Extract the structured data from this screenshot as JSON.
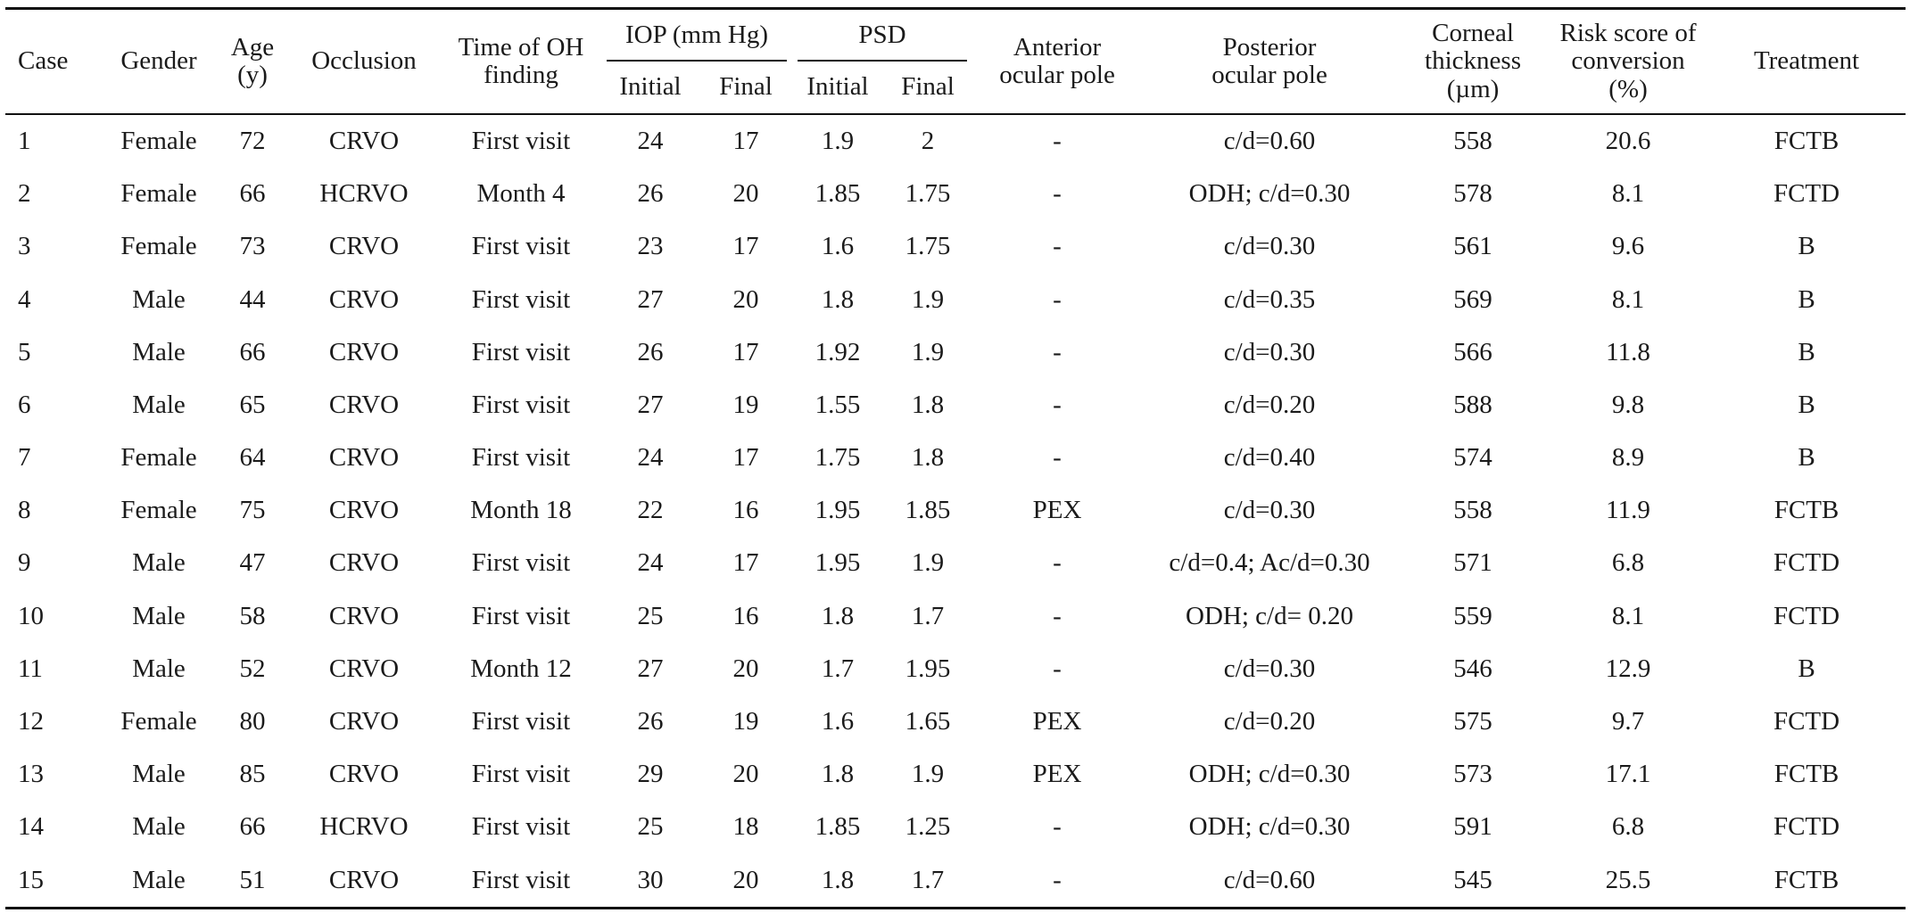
{
  "table": {
    "headers": {
      "case": "Case",
      "gender": "Gender",
      "age_line1": "Age",
      "age_line2": "(y)",
      "occlusion": "Occlusion",
      "time_line1": "Time of OH",
      "time_line2": "finding",
      "iop": "IOP (mm Hg)",
      "iop_initial": "Initial",
      "iop_final": "Final",
      "psd": "PSD",
      "psd_initial": "Initial",
      "psd_final": "Final",
      "anterior_line1": "Anterior",
      "anterior_line2": "ocular pole",
      "posterior_line1": "Posterior",
      "posterior_line2": "ocular pole",
      "corneal_line1": "Corneal",
      "corneal_line2": "thickness",
      "corneal_line3": "(µm)",
      "risk_line1": "Risk score of",
      "risk_line2": "conversion",
      "risk_line3": "(%)",
      "treatment": "Treatment"
    },
    "rows": [
      {
        "case": "1",
        "gender": "Female",
        "age": "72",
        "occlusion": "CRVO",
        "time": "First visit",
        "iop_initial": "24",
        "iop_final": "17",
        "psd_initial": "1.9",
        "psd_final": "2",
        "anterior": "-",
        "posterior": "c/d=0.60",
        "corneal": "558",
        "risk": "20.6",
        "treatment": "FCTB"
      },
      {
        "case": "2",
        "gender": "Female",
        "age": "66",
        "occlusion": "HCRVO",
        "time": "Month 4",
        "iop_initial": "26",
        "iop_final": "20",
        "psd_initial": "1.85",
        "psd_final": "1.75",
        "anterior": "-",
        "posterior": "ODH; c/d=0.30",
        "corneal": "578",
        "risk": "8.1",
        "treatment": "FCTD"
      },
      {
        "case": "3",
        "gender": "Female",
        "age": "73",
        "occlusion": "CRVO",
        "time": "First visit",
        "iop_initial": "23",
        "iop_final": "17",
        "psd_initial": "1.6",
        "psd_final": "1.75",
        "anterior": "-",
        "posterior": "c/d=0.30",
        "corneal": "561",
        "risk": "9.6",
        "treatment": "B"
      },
      {
        "case": "4",
        "gender": "Male",
        "age": "44",
        "occlusion": "CRVO",
        "time": "First visit",
        "iop_initial": "27",
        "iop_final": "20",
        "psd_initial": "1.8",
        "psd_final": "1.9",
        "anterior": "-",
        "posterior": "c/d=0.35",
        "corneal": "569",
        "risk": "8.1",
        "treatment": "B"
      },
      {
        "case": "5",
        "gender": "Male",
        "age": "66",
        "occlusion": "CRVO",
        "time": "First visit",
        "iop_initial": "26",
        "iop_final": "17",
        "psd_initial": "1.92",
        "psd_final": "1.9",
        "anterior": "-",
        "posterior": "c/d=0.30",
        "corneal": "566",
        "risk": "11.8",
        "treatment": "B"
      },
      {
        "case": "6",
        "gender": "Male",
        "age": "65",
        "occlusion": "CRVO",
        "time": "First visit",
        "iop_initial": "27",
        "iop_final": "19",
        "psd_initial": "1.55",
        "psd_final": "1.8",
        "anterior": "-",
        "posterior": "c/d=0.20",
        "corneal": "588",
        "risk": "9.8",
        "treatment": "B"
      },
      {
        "case": "7",
        "gender": "Female",
        "age": "64",
        "occlusion": "CRVO",
        "time": "First visit",
        "iop_initial": "24",
        "iop_final": "17",
        "psd_initial": "1.75",
        "psd_final": "1.8",
        "anterior": "-",
        "posterior": "c/d=0.40",
        "corneal": "574",
        "risk": "8.9",
        "treatment": "B"
      },
      {
        "case": "8",
        "gender": "Female",
        "age": "75",
        "occlusion": "CRVO",
        "time": "Month 18",
        "iop_initial": "22",
        "iop_final": "16",
        "psd_initial": "1.95",
        "psd_final": "1.85",
        "anterior": "PEX",
        "posterior": "c/d=0.30",
        "corneal": "558",
        "risk": "11.9",
        "treatment": "FCTB"
      },
      {
        "case": "9",
        "gender": "Male",
        "age": "47",
        "occlusion": "CRVO",
        "time": "First visit",
        "iop_initial": "24",
        "iop_final": "17",
        "psd_initial": "1.95",
        "psd_final": "1.9",
        "anterior": "-",
        "posterior": "c/d=0.4; Ac/d=0.30",
        "corneal": "571",
        "risk": "6.8",
        "treatment": "FCTD"
      },
      {
        "case": "10",
        "gender": "Male",
        "age": "58",
        "occlusion": "CRVO",
        "time": "First visit",
        "iop_initial": "25",
        "iop_final": "16",
        "psd_initial": "1.8",
        "psd_final": "1.7",
        "anterior": "-",
        "posterior": "ODH; c/d= 0.20",
        "corneal": "559",
        "risk": "8.1",
        "treatment": "FCTD"
      },
      {
        "case": "11",
        "gender": "Male",
        "age": "52",
        "occlusion": "CRVO",
        "time": "Month 12",
        "iop_initial": "27",
        "iop_final": "20",
        "psd_initial": "1.7",
        "psd_final": "1.95",
        "anterior": "-",
        "posterior": "c/d=0.30",
        "corneal": "546",
        "risk": "12.9",
        "treatment": "B"
      },
      {
        "case": "12",
        "gender": "Female",
        "age": "80",
        "occlusion": "CRVO",
        "time": "First visit",
        "iop_initial": "26",
        "iop_final": "19",
        "psd_initial": "1.6",
        "psd_final": "1.65",
        "anterior": "PEX",
        "posterior": "c/d=0.20",
        "corneal": "575",
        "risk": "9.7",
        "treatment": "FCTD"
      },
      {
        "case": "13",
        "gender": "Male",
        "age": "85",
        "occlusion": "CRVO",
        "time": "First visit",
        "iop_initial": "29",
        "iop_final": "20",
        "psd_initial": "1.8",
        "psd_final": "1.9",
        "anterior": "PEX",
        "posterior": "ODH; c/d=0.30",
        "corneal": "573",
        "risk": "17.1",
        "treatment": "FCTB"
      },
      {
        "case": "14",
        "gender": "Male",
        "age": "66",
        "occlusion": "HCRVO",
        "time": "First visit",
        "iop_initial": "25",
        "iop_final": "18",
        "psd_initial": "1.85",
        "psd_final": "1.25",
        "anterior": "-",
        "posterior": "ODH; c/d=0.30",
        "corneal": "591",
        "risk": "6.8",
        "treatment": "FCTD"
      },
      {
        "case": "15",
        "gender": "Male",
        "age": "51",
        "occlusion": "CRVO",
        "time": "First visit",
        "iop_initial": "30",
        "iop_final": "20",
        "psd_initial": "1.8",
        "psd_final": "1.7",
        "anterior": "-",
        "posterior": "c/d=0.60",
        "corneal": "545",
        "risk": "25.5",
        "treatment": "FCTB"
      }
    ]
  }
}
